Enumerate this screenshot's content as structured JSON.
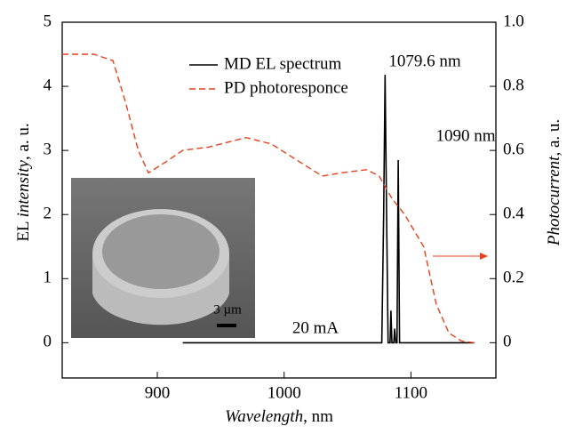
{
  "chart_data": {
    "type": "line",
    "xlabel": [
      "Wavelength",
      ", nm"
    ],
    "ylabel": [
      "EL ",
      "intensity",
      ", a. u."
    ],
    "y2label": [
      "Photocurrent",
      ", a. u."
    ],
    "xlim": [
      825,
      1167
    ],
    "xticks": [
      900,
      1000,
      1100
    ],
    "ylim": [
      -0.55,
      5
    ],
    "yticks": [
      0,
      1,
      2,
      3,
      4,
      5
    ],
    "y2lim": [
      -0.11,
      1.0
    ],
    "y2ticks": [
      0,
      0.2,
      0.4,
      0.6,
      0.8,
      {
        "value": 1.0,
        "label": "1.0"
      }
    ],
    "series": [
      {
        "name": "MD EL spectrum",
        "color": "#000000",
        "dash": false,
        "x": [
          920,
          1077,
          1078.5,
          1079.6,
          1080.8,
          1082,
          1083.5,
          1084.2,
          1085,
          1086.5,
          1087.2,
          1088,
          1089,
          1090,
          1091,
          1150
        ],
        "values": [
          0,
          0,
          2,
          4.18,
          2,
          0,
          0,
          0.5,
          0,
          0,
          0.22,
          0,
          0,
          2.85,
          0,
          0
        ]
      },
      {
        "name": "PD photoresponce",
        "color": "#e8401c",
        "dash": true,
        "axis": "y2",
        "x": [
          825,
          850,
          865,
          875,
          885,
          893,
          905,
          920,
          940,
          970,
          990,
          1010,
          1030,
          1045,
          1065,
          1075,
          1085,
          1095,
          1110,
          1120,
          1130,
          1140,
          1150
        ],
        "values": [
          0.9,
          0.9,
          0.88,
          0.75,
          0.6,
          0.53,
          0.56,
          0.6,
          0.61,
          0.64,
          0.62,
          0.57,
          0.52,
          0.53,
          0.54,
          0.52,
          0.45,
          0.4,
          0.3,
          0.12,
          0.03,
          0.005,
          0
        ]
      }
    ],
    "annotations": [
      "1079.6 nm",
      "1090 nm",
      "20 mA",
      "3 µm"
    ]
  }
}
